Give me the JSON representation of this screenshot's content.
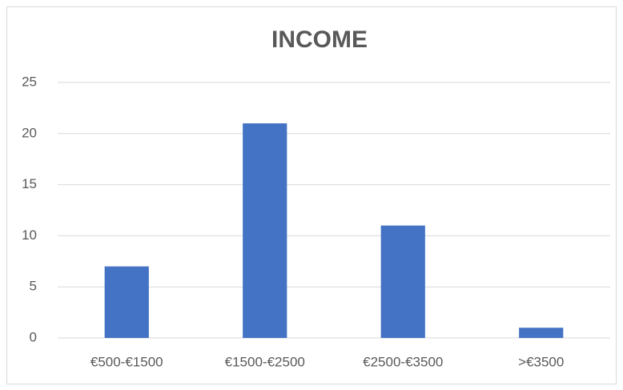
{
  "chart_data": {
    "type": "bar",
    "title": "INCOME",
    "categories": [
      "€500-€1500",
      "€1500-€2500",
      "€2500-€3500",
      ">€3500"
    ],
    "values": [
      7,
      21,
      11,
      1
    ],
    "color": "#4472c4",
    "ylim": [
      0,
      25
    ],
    "yticks": [
      0,
      5,
      10,
      15,
      20,
      25
    ],
    "grid": true
  }
}
